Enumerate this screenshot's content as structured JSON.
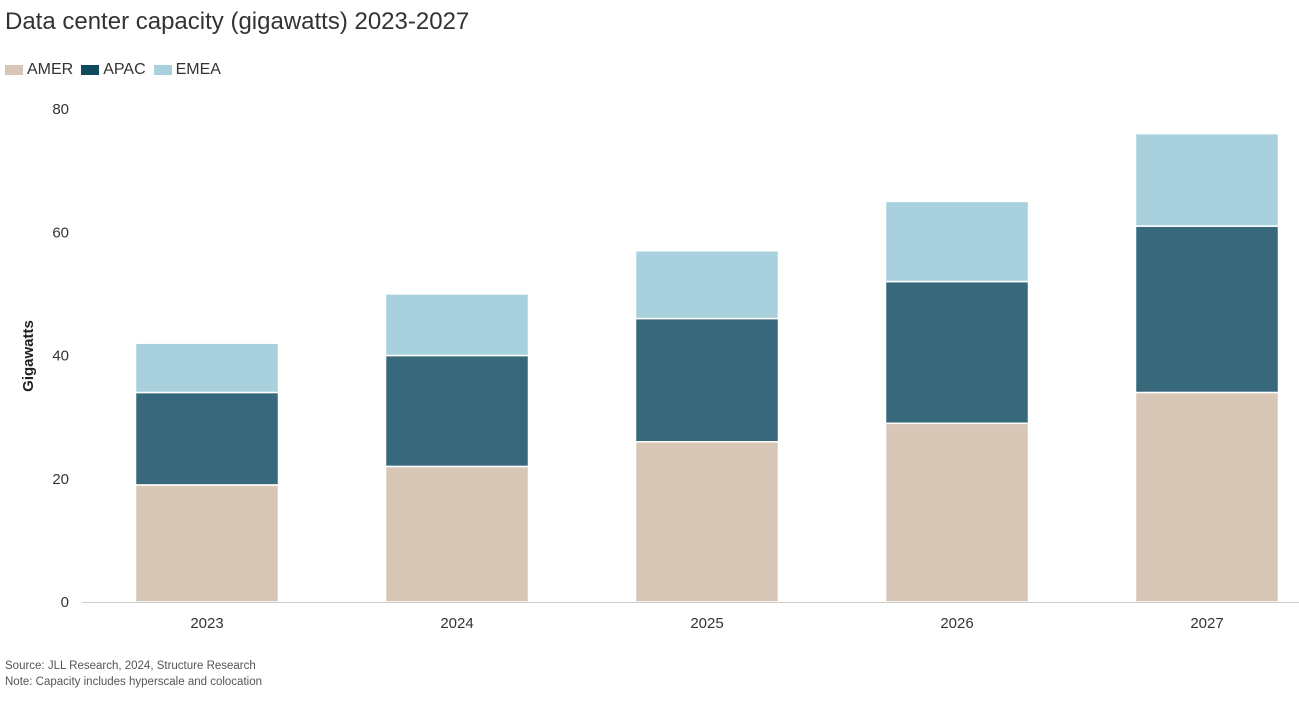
{
  "chart_data": {
    "type": "bar",
    "stacked": true,
    "title": "Data center capacity (gigawatts) 2023-2027",
    "xlabel": "",
    "ylabel": "Gigawatts",
    "categories": [
      "2023",
      "2024",
      "2025",
      "2026",
      "2027"
    ],
    "ylim": [
      0,
      80
    ],
    "yticks": [
      0,
      20,
      40,
      60,
      80
    ],
    "grid": false,
    "legend_position": "top-left",
    "series": [
      {
        "name": "AMER",
        "color": "#d8c6b6",
        "values": [
          19,
          22,
          26,
          29,
          34
        ]
      },
      {
        "name": "APAC",
        "color": "#37687b",
        "values": [
          15,
          18,
          20,
          23,
          27
        ]
      },
      {
        "name": "EMEA",
        "color": "#a8d0dd",
        "values": [
          8,
          10,
          11,
          13,
          15
        ]
      }
    ],
    "legend_swatch_colors": [
      "#d8c6b6",
      "#0f4a5e",
      "#a8d0dd"
    ]
  },
  "footer": {
    "source": "Source: JLL Research, 2024, Structure Research",
    "note": "Note: Capacity includes hyperscale and colocation"
  }
}
